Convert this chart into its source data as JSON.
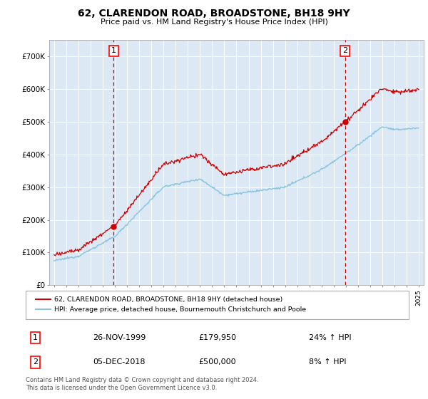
{
  "title": "62, CLARENDON ROAD, BROADSTONE, BH18 9HY",
  "subtitle": "Price paid vs. HM Land Registry's House Price Index (HPI)",
  "ylim": [
    0,
    750000
  ],
  "yticks": [
    0,
    100000,
    200000,
    300000,
    400000,
    500000,
    600000,
    700000
  ],
  "ytick_labels": [
    "£0",
    "£100K",
    "£200K",
    "£300K",
    "£400K",
    "£500K",
    "£600K",
    "£700K"
  ],
  "background_color": "#dce9f5",
  "sale1_date_x": 1999.9,
  "sale1_price": 179950,
  "sale2_date_x": 2018.92,
  "sale2_price": 500000,
  "legend_line1": "62, CLARENDON ROAD, BROADSTONE, BH18 9HY (detached house)",
  "legend_line2": "HPI: Average price, detached house, Bournemouth Christchurch and Poole",
  "table_row1": [
    "1",
    "26-NOV-1999",
    "£179,950",
    "24% ↑ HPI"
  ],
  "table_row2": [
    "2",
    "05-DEC-2018",
    "£500,000",
    "8% ↑ HPI"
  ],
  "footer": "Contains HM Land Registry data © Crown copyright and database right 2024.\nThis data is licensed under the Open Government Licence v3.0.",
  "hpi_color": "#89c4e1",
  "price_color": "#cc0000",
  "vline_color": "#cc0000",
  "xlim_left": 1994.6,
  "xlim_right": 2025.4
}
